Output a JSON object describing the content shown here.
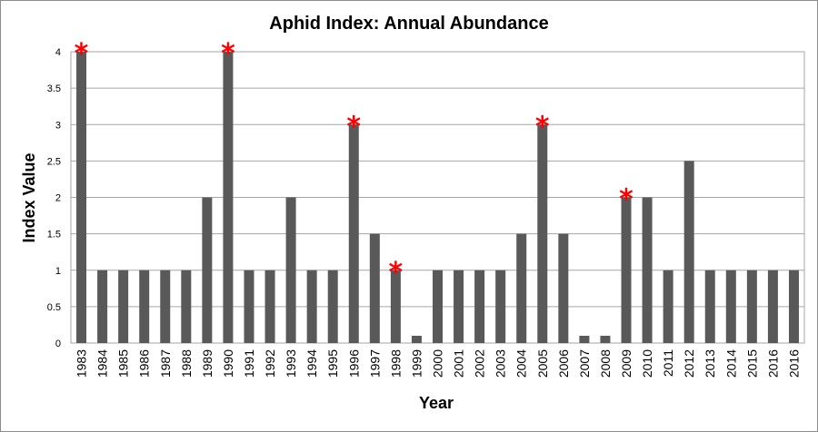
{
  "chart_data": {
    "type": "bar",
    "title": "Aphid Index: Annual Abundance",
    "xlabel": "Year",
    "ylabel": "Index Value",
    "ylim": [
      0,
      4
    ],
    "yticks": [
      "0",
      "0.5",
      "1",
      "1.5",
      "2",
      "2.5",
      "3",
      "3.5",
      "4"
    ],
    "grid": true,
    "bar_color": "#595959",
    "marker_color": "#ff0000",
    "categories": [
      "1983",
      "1984",
      "1985",
      "1986",
      "1987",
      "1988",
      "1989",
      "1990",
      "1991",
      "1992",
      "1993",
      "1994",
      "1995",
      "1996",
      "1997",
      "1998",
      "1999",
      "2000",
      "2001",
      "2002",
      "2003",
      "2004",
      "2005",
      "2006",
      "2007",
      "2008",
      "2009",
      "2010",
      "2011",
      "2012",
      "2013",
      "2014",
      "2015",
      "2016",
      "2016"
    ],
    "values": [
      4,
      1,
      1,
      1,
      1,
      1,
      2,
      4,
      1,
      1,
      2,
      1,
      1,
      3,
      1.5,
      1,
      0.1,
      1,
      1,
      1,
      1,
      1.5,
      3,
      1.5,
      0.1,
      0.1,
      2,
      2,
      1,
      2.5,
      1,
      1,
      1,
      1,
      1
    ],
    "marked_categories": [
      "1983",
      "1990",
      "1996",
      "1998",
      "2005",
      "2009"
    ],
    "marker_symbol": "*"
  }
}
